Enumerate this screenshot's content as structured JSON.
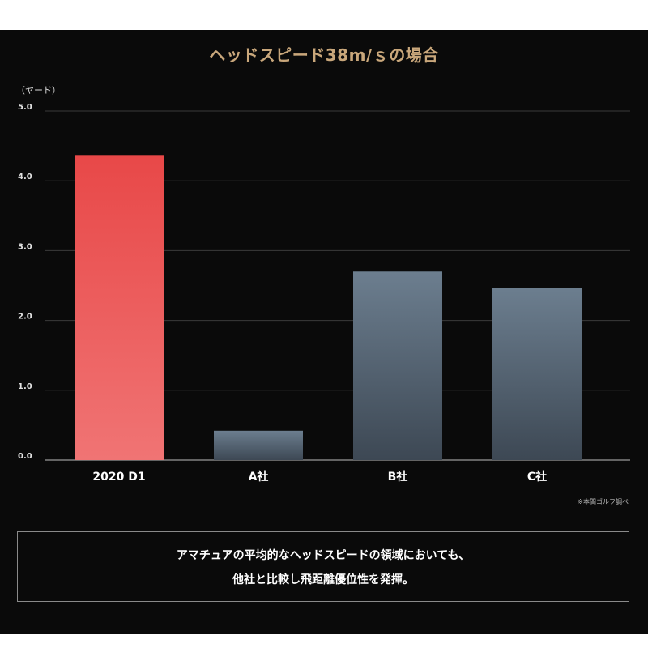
{
  "chart_data": {
    "type": "bar",
    "title": "ヘッドスピード38m/ｓの場合",
    "ylabel": "（ヤード）",
    "categories": [
      "2020 D1",
      "A社",
      "B社",
      "C社"
    ],
    "values": [
      4.37,
      0.42,
      2.7,
      2.47
    ],
    "ylim": [
      0,
      5
    ],
    "yticks": [
      "0.0",
      "1.0",
      "2.0",
      "3.0",
      "4.0",
      "5.0"
    ],
    "grid": true,
    "legend": "none",
    "colors": {
      "highlight_top": "#e84848",
      "highlight_bottom": "#f07474",
      "other_top": "#6c7e8f",
      "other_bottom": "#3d4854",
      "grid": "#3a3a3a",
      "baseline": "#9a9a9a"
    }
  },
  "footnote": "※本間ゴルフ調べ",
  "message": {
    "line1": "アマチュアの平均的なヘッドスピードの領域においても、",
    "line2": "他社と比較し飛距離優位性を発揮。"
  }
}
